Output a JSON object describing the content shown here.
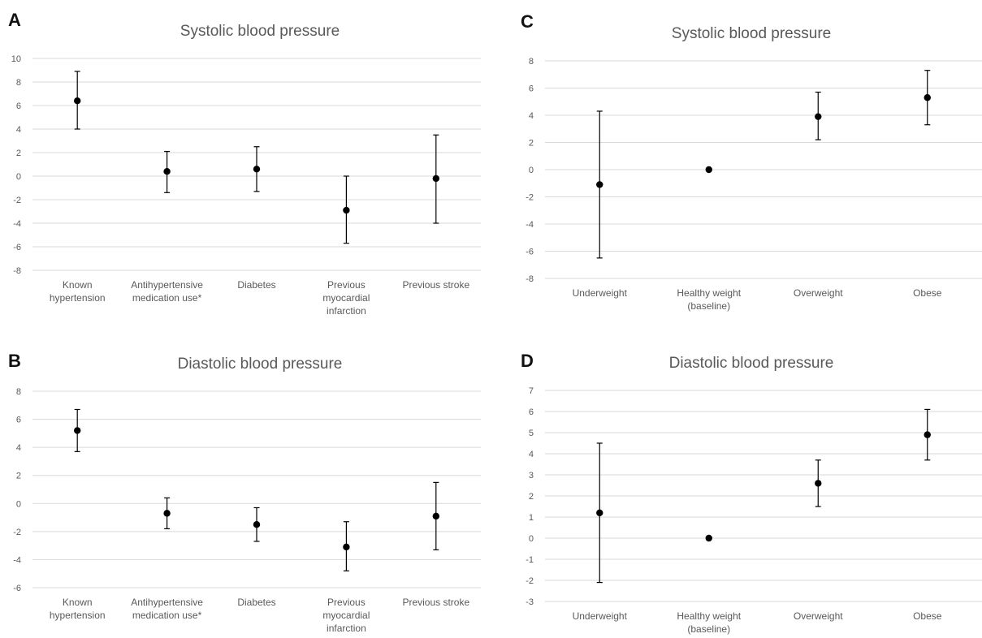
{
  "chart_data": [
    {
      "panel": "A",
      "type": "scatter",
      "title": "Systolic blood pressure",
      "categories": [
        [
          "Known",
          "hypertension"
        ],
        [
          "Antihypertensive",
          "medication use*"
        ],
        [
          "Diabetes"
        ],
        [
          "Previous",
          "myocardial",
          "infarction"
        ],
        [
          "Previous stroke"
        ]
      ],
      "values": [
        6.4,
        0.4,
        0.6,
        -2.9,
        -0.2
      ],
      "lower": [
        4.0,
        -1.4,
        -1.3,
        -5.7,
        -4.0
      ],
      "upper": [
        8.9,
        2.1,
        2.5,
        0.0,
        3.5
      ],
      "ylim": [
        -8,
        10
      ],
      "yticks": [
        -8,
        -6,
        -4,
        -2,
        0,
        2,
        4,
        6,
        8,
        10
      ],
      "grid": true
    },
    {
      "panel": "C",
      "type": "scatter",
      "title": "Systolic blood pressure",
      "categories": [
        [
          "Underweight"
        ],
        [
          "Healthy weight",
          "(baseline)"
        ],
        [
          "Overweight"
        ],
        [
          "Obese"
        ]
      ],
      "values": [
        -1.1,
        0.0,
        3.9,
        5.3
      ],
      "lower": [
        -6.5,
        null,
        2.2,
        3.3
      ],
      "upper": [
        4.3,
        null,
        5.7,
        7.3
      ],
      "ylim": [
        -8,
        8
      ],
      "yticks": [
        -8,
        -6,
        -4,
        -2,
        0,
        2,
        4,
        6,
        8
      ],
      "grid": true
    },
    {
      "panel": "B",
      "type": "scatter",
      "title": "Diastolic blood pressure",
      "categories": [
        [
          "Known",
          "hypertension"
        ],
        [
          "Antihypertensive",
          "medication use*"
        ],
        [
          "Diabetes"
        ],
        [
          "Previous",
          "myocardial",
          "infarction"
        ],
        [
          "Previous stroke"
        ]
      ],
      "values": [
        5.2,
        -0.7,
        -1.5,
        -3.1,
        -0.9
      ],
      "lower": [
        3.7,
        -1.8,
        -2.7,
        -4.8,
        -3.3
      ],
      "upper": [
        6.7,
        0.4,
        -0.3,
        -1.3,
        1.5
      ],
      "ylim": [
        -6,
        8
      ],
      "yticks": [
        -6,
        -4,
        -2,
        0,
        2,
        4,
        6,
        8
      ],
      "grid": true
    },
    {
      "panel": "D",
      "type": "scatter",
      "title": "Diastolic blood pressure",
      "categories": [
        [
          "Underweight"
        ],
        [
          "Healthy weight",
          "(baseline)"
        ],
        [
          "Overweight"
        ],
        [
          "Obese"
        ]
      ],
      "values": [
        1.2,
        0.0,
        2.6,
        4.9
      ],
      "lower": [
        -2.1,
        null,
        1.5,
        3.7
      ],
      "upper": [
        4.5,
        null,
        3.7,
        6.1
      ],
      "ylim": [
        -3,
        7
      ],
      "yticks": [
        -3,
        -2,
        -1,
        0,
        1,
        2,
        3,
        4,
        5,
        6,
        7
      ],
      "grid": true
    }
  ],
  "colors": {
    "grid": "#d9d9d9",
    "text": "#595959",
    "marker": "#000000"
  }
}
